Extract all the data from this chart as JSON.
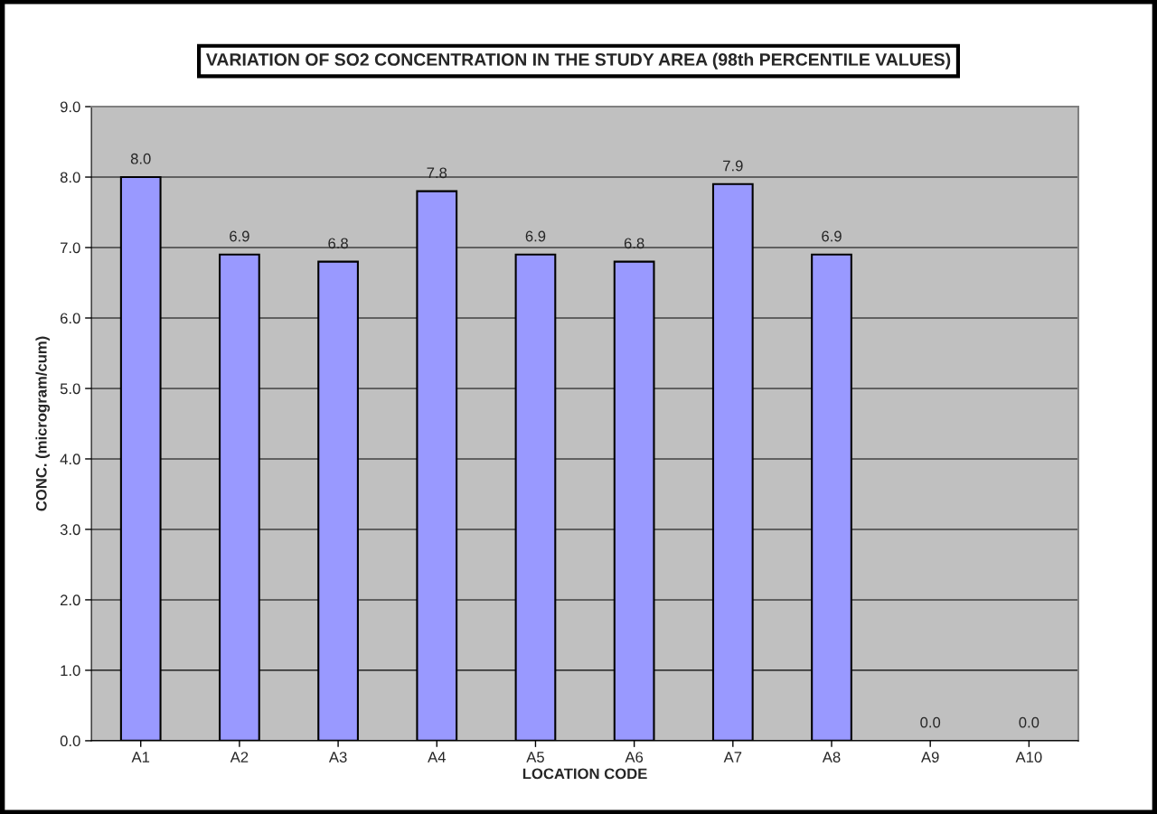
{
  "chart_data": {
    "type": "bar",
    "title": "VARIATION OF SO2 CONCENTRATION IN THE STUDY AREA (98th PERCENTILE VALUES)",
    "xlabel": "LOCATION CODE",
    "ylabel": "CONC. (microgram/cum)",
    "categories": [
      "A1",
      "A2",
      "A3",
      "A4",
      "A5",
      "A6",
      "A7",
      "A8",
      "A9",
      "A10"
    ],
    "values": [
      8.0,
      6.9,
      6.8,
      7.8,
      6.9,
      6.8,
      7.9,
      6.9,
      0.0,
      0.0
    ],
    "color": "#9999ff",
    "ylim": [
      0,
      9
    ],
    "yticks": [
      {
        "value": 0,
        "label": "0.0"
      },
      {
        "value": 1,
        "label": "1.0"
      },
      {
        "value": 2,
        "label": "2.0"
      },
      {
        "value": 3,
        "label": "3.0"
      },
      {
        "value": 4,
        "label": "4.0"
      },
      {
        "value": 5,
        "label": "5.0"
      },
      {
        "value": 6,
        "label": "6.0"
      },
      {
        "value": 7,
        "label": "7.0"
      },
      {
        "value": 8,
        "label": "8.0"
      },
      {
        "value": 9,
        "label": "9.0"
      }
    ],
    "grid": "y",
    "value_labels": [
      "8.0",
      "6.9",
      "6.8",
      "7.8",
      "6.9",
      "6.8",
      "7.9",
      "6.9",
      "0.0",
      "0.0"
    ]
  }
}
